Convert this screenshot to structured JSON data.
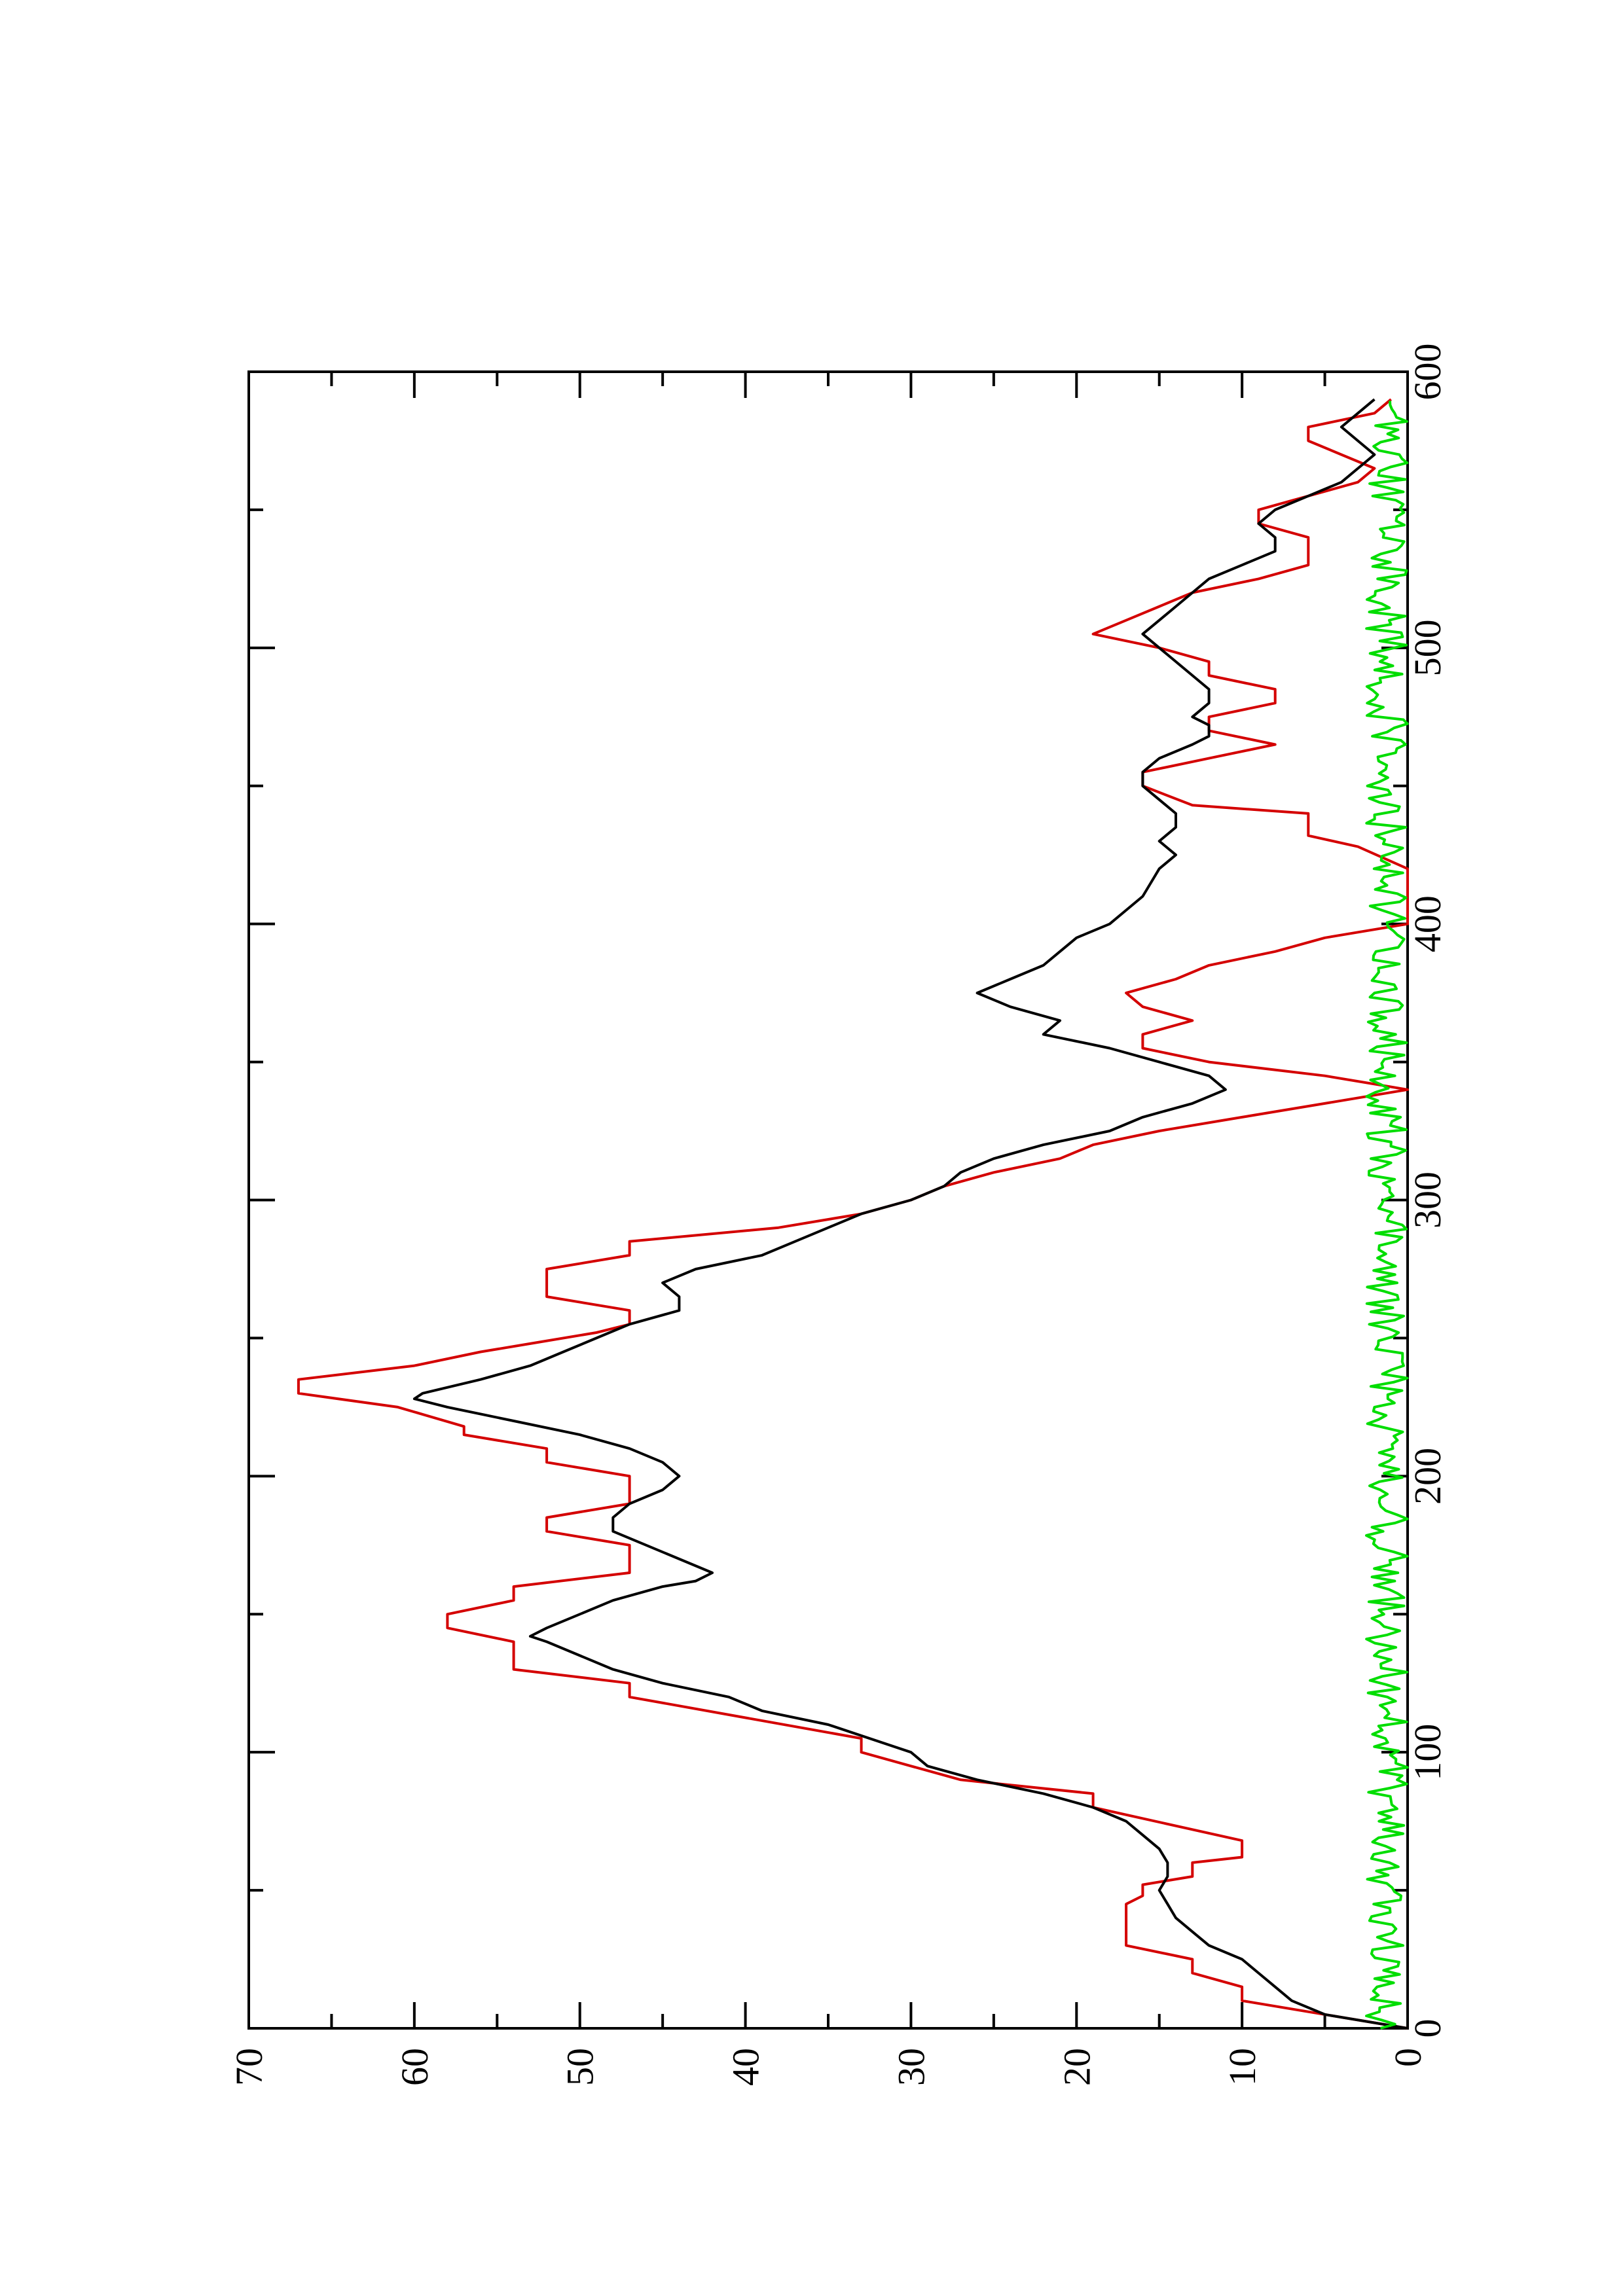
{
  "chart_data": {
    "type": "line",
    "orientation": "rotated-90",
    "title": "",
    "xlabel": "",
    "ylabel": "",
    "xlim": [
      0,
      600
    ],
    "ylim": [
      0,
      70
    ],
    "x_ticks": [
      0,
      100,
      200,
      300,
      400,
      500,
      600
    ],
    "y_ticks": [
      0,
      10,
      20,
      30,
      40,
      50,
      60,
      70
    ],
    "grid": false,
    "legend": "none",
    "series": [
      {
        "color": "#d40000",
        "step": true,
        "points": [
          [
            0,
            0
          ],
          [
            10,
            10
          ],
          [
            15,
            10
          ],
          [
            20,
            13
          ],
          [
            25,
            13
          ],
          [
            30,
            17
          ],
          [
            45,
            17
          ],
          [
            48,
            16
          ],
          [
            52,
            16
          ],
          [
            55,
            13
          ],
          [
            60,
            13
          ],
          [
            62,
            10
          ],
          [
            68,
            10
          ],
          [
            80,
            19
          ],
          [
            85,
            19
          ],
          [
            90,
            27
          ],
          [
            95,
            30
          ],
          [
            100,
            33
          ],
          [
            105,
            33
          ],
          [
            120,
            47
          ],
          [
            125,
            47
          ],
          [
            130,
            54
          ],
          [
            140,
            54
          ],
          [
            145,
            58
          ],
          [
            150,
            58
          ],
          [
            155,
            54
          ],
          [
            160,
            54
          ],
          [
            165,
            47
          ],
          [
            175,
            47
          ],
          [
            180,
            52
          ],
          [
            185,
            52
          ],
          [
            190,
            47
          ],
          [
            200,
            47
          ],
          [
            205,
            52
          ],
          [
            210,
            52
          ],
          [
            215,
            57
          ],
          [
            218,
            57
          ],
          [
            225,
            61
          ],
          [
            230,
            67
          ],
          [
            235,
            67
          ],
          [
            240,
            60
          ],
          [
            245,
            56
          ],
          [
            248,
            53
          ],
          [
            252,
            49
          ],
          [
            255,
            47
          ],
          [
            260,
            47
          ],
          [
            265,
            52
          ],
          [
            275,
            52
          ],
          [
            280,
            47
          ],
          [
            285,
            47
          ],
          [
            290,
            38
          ],
          [
            295,
            33
          ],
          [
            300,
            30
          ],
          [
            305,
            28
          ],
          [
            310,
            25
          ],
          [
            315,
            21
          ],
          [
            320,
            19
          ],
          [
            325,
            15
          ],
          [
            330,
            10
          ],
          [
            335,
            5
          ],
          [
            340,
            0
          ],
          [
            345,
            5
          ],
          [
            350,
            12
          ],
          [
            355,
            16
          ],
          [
            360,
            16
          ],
          [
            365,
            13
          ],
          [
            370,
            16
          ],
          [
            375,
            17
          ],
          [
            380,
            14
          ],
          [
            385,
            12
          ],
          [
            390,
            8
          ],
          [
            395,
            5
          ],
          [
            400,
            0
          ],
          [
            420,
            0
          ],
          [
            428,
            3
          ],
          [
            432,
            6
          ],
          [
            440,
            6
          ],
          [
            443,
            13
          ],
          [
            450,
            16
          ],
          [
            455,
            16
          ],
          [
            460,
            12
          ],
          [
            465,
            8
          ],
          [
            470,
            12
          ],
          [
            475,
            12
          ],
          [
            480,
            8
          ],
          [
            485,
            8
          ],
          [
            490,
            12
          ],
          [
            495,
            12
          ],
          [
            500,
            15
          ],
          [
            505,
            19
          ],
          [
            510,
            17
          ],
          [
            515,
            15
          ],
          [
            520,
            13
          ],
          [
            525,
            9
          ],
          [
            530,
            6
          ],
          [
            540,
            6
          ],
          [
            545,
            9
          ],
          [
            550,
            9
          ],
          [
            555,
            6
          ],
          [
            560,
            3
          ],
          [
            565,
            2
          ],
          [
            570,
            4
          ],
          [
            575,
            6
          ],
          [
            580,
            6
          ],
          [
            585,
            2
          ],
          [
            590,
            1
          ]
        ]
      },
      {
        "color": "#000000",
        "step": false,
        "points": [
          [
            0,
            0
          ],
          [
            5,
            5
          ],
          [
            10,
            7
          ],
          [
            15,
            8
          ],
          [
            20,
            9
          ],
          [
            25,
            10
          ],
          [
            30,
            12
          ],
          [
            35,
            13
          ],
          [
            40,
            14
          ],
          [
            45,
            14.5
          ],
          [
            50,
            15
          ],
          [
            55,
            14.5
          ],
          [
            60,
            14.5
          ],
          [
            65,
            15
          ],
          [
            70,
            16
          ],
          [
            75,
            17
          ],
          [
            80,
            19
          ],
          [
            85,
            22
          ],
          [
            90,
            26
          ],
          [
            95,
            29
          ],
          [
            100,
            30
          ],
          [
            110,
            35
          ],
          [
            115,
            39
          ],
          [
            120,
            41
          ],
          [
            125,
            45
          ],
          [
            130,
            48
          ],
          [
            135,
            50
          ],
          [
            140,
            52
          ],
          [
            142,
            53
          ],
          [
            145,
            52
          ],
          [
            150,
            50
          ],
          [
            155,
            48
          ],
          [
            160,
            45
          ],
          [
            162,
            43
          ],
          [
            165,
            42
          ],
          [
            170,
            44
          ],
          [
            175,
            46
          ],
          [
            180,
            48
          ],
          [
            185,
            48
          ],
          [
            190,
            47
          ],
          [
            195,
            45
          ],
          [
            200,
            44
          ],
          [
            205,
            45
          ],
          [
            210,
            47
          ],
          [
            215,
            50
          ],
          [
            220,
            54
          ],
          [
            225,
            58
          ],
          [
            228,
            60
          ],
          [
            230,
            59.5
          ],
          [
            235,
            56
          ],
          [
            240,
            53
          ],
          [
            245,
            51
          ],
          [
            250,
            49
          ],
          [
            255,
            47
          ],
          [
            260,
            44
          ],
          [
            265,
            44
          ],
          [
            270,
            45
          ],
          [
            275,
            43
          ],
          [
            280,
            39
          ],
          [
            285,
            37
          ],
          [
            290,
            35
          ],
          [
            295,
            33
          ],
          [
            300,
            30
          ],
          [
            305,
            28
          ],
          [
            310,
            27
          ],
          [
            315,
            25
          ],
          [
            320,
            22
          ],
          [
            325,
            18
          ],
          [
            330,
            16
          ],
          [
            335,
            13
          ],
          [
            340,
            11
          ],
          [
            345,
            12
          ],
          [
            350,
            15
          ],
          [
            355,
            18
          ],
          [
            360,
            22
          ],
          [
            365,
            21
          ],
          [
            370,
            24
          ],
          [
            375,
            26
          ],
          [
            380,
            24
          ],
          [
            385,
            22
          ],
          [
            390,
            21
          ],
          [
            395,
            20
          ],
          [
            400,
            18
          ],
          [
            405,
            17
          ],
          [
            410,
            16
          ],
          [
            415,
            15.5
          ],
          [
            420,
            15
          ],
          [
            425,
            14
          ],
          [
            430,
            15
          ],
          [
            435,
            14
          ],
          [
            440,
            14
          ],
          [
            445,
            15
          ],
          [
            450,
            16
          ],
          [
            455,
            16
          ],
          [
            460,
            15
          ],
          [
            465,
            13
          ],
          [
            468,
            12
          ],
          [
            472,
            12
          ],
          [
            475,
            13
          ],
          [
            480,
            12
          ],
          [
            485,
            12
          ],
          [
            490,
            13
          ],
          [
            495,
            14
          ],
          [
            500,
            15
          ],
          [
            505,
            16
          ],
          [
            510,
            15
          ],
          [
            515,
            14
          ],
          [
            520,
            13
          ],
          [
            525,
            12
          ],
          [
            530,
            10
          ],
          [
            535,
            8
          ],
          [
            540,
            8
          ],
          [
            545,
            9
          ],
          [
            550,
            8
          ],
          [
            555,
            6
          ],
          [
            560,
            4
          ],
          [
            565,
            3
          ],
          [
            570,
            2
          ],
          [
            575,
            3
          ],
          [
            580,
            4
          ],
          [
            585,
            3
          ],
          [
            590,
            2
          ]
        ]
      },
      {
        "color": "#00dd00",
        "step": false,
        "noisy": true,
        "x_range": [
          0,
          590
        ],
        "value_range": [
          0,
          2.5
        ]
      }
    ]
  }
}
